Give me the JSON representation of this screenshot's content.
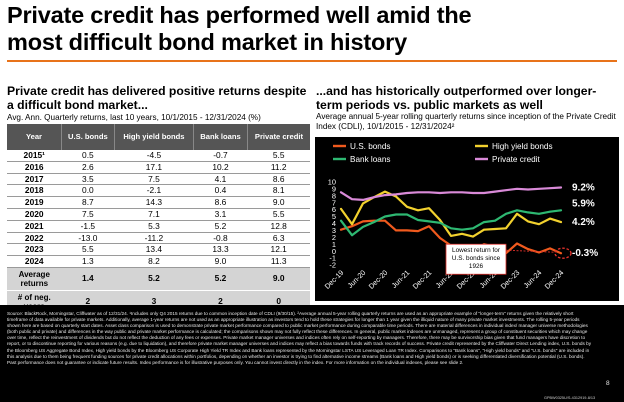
{
  "title_line1": "Private credit has performed well amid the",
  "title_line2": "most difficult bond market in history",
  "accent_color": "#e8731a",
  "left": {
    "heading": "Private credit has delivered positive returns despite a difficult bond market...",
    "subheading": "Avg. Ann. Quarterly returns, last 10 years, 10/1/2015 - 12/31/2024 (%)",
    "table": {
      "headers": [
        "Year",
        "U.S. bonds",
        "High yield bonds",
        "Bank loans",
        "Private credit"
      ],
      "rows": [
        [
          "2015¹",
          "0.5",
          "-4.5",
          "-0.7",
          "5.5"
        ],
        [
          "2016",
          "2.6",
          "17.1",
          "10.2",
          "11.2"
        ],
        [
          "2017",
          "3.5",
          "7.5",
          "4.1",
          "8.6"
        ],
        [
          "2018",
          "0.0",
          "-2.1",
          "0.4",
          "8.1"
        ],
        [
          "2019",
          "8.7",
          "14.3",
          "8.6",
          "9.0"
        ],
        [
          "2020",
          "7.5",
          "7.1",
          "3.1",
          "5.5"
        ],
        [
          "2021",
          "-1.5",
          "5.3",
          "5.2",
          "12.8"
        ],
        [
          "2022",
          "-13.0",
          "-11.2",
          "-0.8",
          "6.3"
        ],
        [
          "2023",
          "5.5",
          "13.4",
          "13.3",
          "12.1"
        ],
        [
          "2024",
          "1.3",
          "8.2",
          "9.0",
          "11.3"
        ]
      ],
      "summary": [
        {
          "label": "Average returns",
          "values": [
            "1.4",
            "5.2",
            "5.2",
            "9.0"
          ]
        },
        {
          "label": "# of neg. years",
          "values": [
            "2",
            "3",
            "2",
            "0"
          ]
        }
      ]
    }
  },
  "right": {
    "heading": "...and has historically outperformed over longer-term periods vs. public markets as well",
    "subheading": "Average annual 5-year rolling quarterly returns since inception of the Private Credit Index (CDLI), 10/1/2015 - 12/31/2024²"
  },
  "chart_data": {
    "type": "line",
    "x": [
      "Dec-19",
      "Mar-20",
      "Jun-20",
      "Sep-20",
      "Dec-20",
      "Mar-21",
      "Jun-21",
      "Sep-21",
      "Dec-21",
      "Mar-22",
      "Jun-22",
      "Sep-22",
      "Dec-22",
      "Mar-23",
      "Jun-23",
      "Sep-23",
      "Dec-23",
      "Mar-24",
      "Jun-24",
      "Sep-24",
      "Dec-24"
    ],
    "x_tick_labels": [
      "Dec-19",
      "Jun-20",
      "Dec-20",
      "Jun-21",
      "Dec-21",
      "Jun-22",
      "Dec-22",
      "Jun-23",
      "Dec-23",
      "Jun-24",
      "Dec-24"
    ],
    "ylim": [
      -2,
      11
    ],
    "y_ticks": [
      -2,
      -1,
      0,
      1,
      2,
      3,
      4,
      5,
      6,
      7,
      8,
      9,
      10
    ],
    "grid": false,
    "legend": "top",
    "series": [
      {
        "name": "U.S. bonds",
        "color": "#f05a1e",
        "end_label": "-0.3%",
        "values": [
          3.1,
          3.6,
          4.3,
          4.4,
          4.4,
          3.0,
          3.0,
          2.9,
          3.6,
          1.9,
          0.8,
          0.3,
          0.0,
          1.0,
          0.6,
          -0.3,
          1.1,
          0.3,
          -0.2,
          0.4,
          -0.3
        ]
      },
      {
        "name": "High yield bonds",
        "color": "#f2d12e",
        "end_label": "4.2%",
        "values": [
          6.1,
          3.9,
          6.9,
          7.8,
          8.6,
          7.9,
          6.4,
          5.9,
          6.2,
          4.5,
          2.2,
          2.5,
          2.1,
          3.1,
          3.2,
          3.3,
          5.4,
          4.3,
          3.9,
          4.7,
          4.2
        ]
      },
      {
        "name": "Bank loans",
        "color": "#2eb872",
        "end_label": "5.9%",
        "values": [
          4.4,
          2.3,
          3.5,
          4.2,
          5.0,
          5.3,
          5.3,
          4.5,
          4.3,
          4.1,
          3.3,
          3.1,
          3.3,
          4.2,
          4.4,
          5.4,
          5.9,
          5.6,
          5.4,
          5.7,
          5.9
        ]
      },
      {
        "name": "Private credit",
        "color": "#d98ad8",
        "end_label": "9.2%",
        "values": [
          8.5,
          7.5,
          7.4,
          7.8,
          8.1,
          8.2,
          8.4,
          8.5,
          8.5,
          8.4,
          8.5,
          8.5,
          8.4,
          8.4,
          8.6,
          8.8,
          9.0,
          8.9,
          9.0,
          9.1,
          9.2
        ]
      }
    ],
    "annotation": {
      "text_lines": [
        "Lowest return for",
        "U.S. bonds since",
        "1926"
      ],
      "x": "Sep-23",
      "y": -0.3
    }
  },
  "footer": {
    "text": "Source: BlackRock, Morningstar, Cliffwater as of 12/31/24. ¹Includes only Q4 2015 returns due to common inception date of CDLI (9/30/15). ²Average annual 5-year rolling quarterly returns are used as an appropriate example of \"longer-term\" returns given the relatively short timeframe of data available for private markets. Additionally, average 1-year returns are not used as an appropriate illustration as investors tend to hold these strategies for longer than 1 year given the illiquid nature of many private market investments. The rolling 5-year periods shown here are based on quarterly start dates. Asset class comparison is used to demonstrate private market performance compared to public market performance during comparable time periods. There are material differences in individual index/ manager universe methodologies (both public and private) and differences in the way public and private market performance is calculated; the comparisons shown may not fully reflect these differences. In general, public market indexes are unmanaged, represent a group of constituent securities which may change over time, reflect the reinvestment of dividends but do not reflect the deduction of any fees or expenses. Private market manager universes and indices often rely on self-reporting by managers. Therefore, there may be survivorship bias given that fund managers have discretion to report, or to discontinue reporting for various reasons (e.g. due to liquidation), and therefore private market manager universes and indices may reflect a bias towards funds with track records of success. Private credit represented by the Cliffwater Direct Lending index, U.S. bonds by the Bloomberg US Aggregate Bond Index, High yield bonds by the Bloomberg US Corporate High Yield TR Index and Bank loans represented by the Morningstar LSTA US Leveraged Loan TR Index. Comparisons to \"Bank loans\", \"High yield bonds\" and \"U.S. bonds\" are included in this analysis due to them being frequent funding sources for private credit allocations within portfolios, depending on whether an investor is trying to find alternative income streams (Bank loans and High yield bonds) or is seeking differentiated diversification potential (U.S. bonds). Past performance does not guarantee or indicate future results. Index performance is for illustrative purposes only. You cannot invest directly in the index. For more information on the individual indexes, please see slide 2.",
    "page_number": "8",
    "code": "GPBW0325U/S-4312919-8/13"
  }
}
